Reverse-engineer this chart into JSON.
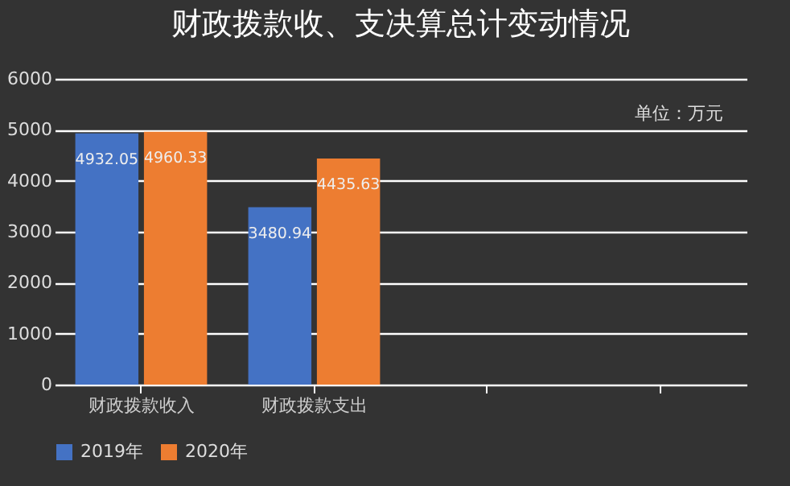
{
  "chart_data": {
    "type": "bar",
    "title": "财政拨款收、支决算总计变动情况",
    "annotations": [
      "单位：万元"
    ],
    "categories": [
      "财政拨款收入",
      "财政拨款支出",
      null,
      null
    ],
    "series": [
      {
        "name": "2019年",
        "color": "#4472c4",
        "values": [
          4932.05,
          3480.94,
          null,
          null
        ]
      },
      {
        "name": "2020年",
        "color": "#ed7d31",
        "values": [
          4960.33,
          4435.63,
          null,
          null
        ]
      }
    ],
    "ylim": [
      0,
      6000
    ],
    "yticks": [
      0,
      1000,
      2000,
      3000,
      4000,
      5000,
      6000
    ],
    "grid": "y",
    "legend": "bottom",
    "data_labels": true
  }
}
